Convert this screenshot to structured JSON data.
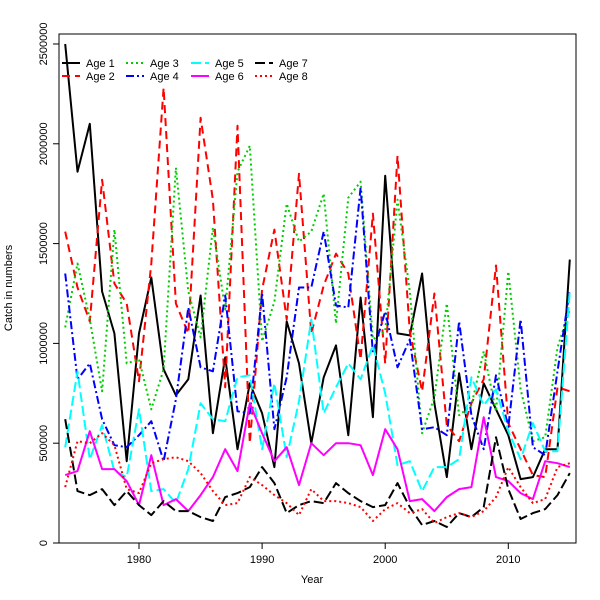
{
  "chart_data": {
    "type": "line",
    "xlabel": "Year",
    "ylabel": "Catch in numbers",
    "xlim": [
      1973.5,
      2015.5
    ],
    "ylim": [
      0,
      2550000
    ],
    "x_ticks": [
      1980,
      1990,
      2000,
      2010
    ],
    "y_ticks": [
      0,
      500000,
      1000000,
      1500000,
      2000000,
      2500000
    ],
    "legend_position": "top-left",
    "x": [
      1974,
      1975,
      1976,
      1977,
      1978,
      1979,
      1980,
      1981,
      1982,
      1983,
      1984,
      1985,
      1986,
      1987,
      1988,
      1989,
      1990,
      1991,
      1992,
      1993,
      1994,
      1995,
      1996,
      1997,
      1998,
      1999,
      2000,
      2001,
      2002,
      2003,
      2004,
      2005,
      2006,
      2007,
      2008,
      2009,
      2010,
      2011,
      2012,
      2013,
      2014,
      2015
    ],
    "series": [
      {
        "name": "Age 1",
        "color": "#000000",
        "dash": "solid",
        "values": [
          2500000,
          1860000,
          2100000,
          1260000,
          1050000,
          410000,
          1050000,
          1330000,
          870000,
          740000,
          820000,
          1240000,
          550000,
          930000,
          470000,
          800000,
          650000,
          380000,
          1110000,
          900000,
          500000,
          830000,
          990000,
          540000,
          1230000,
          630000,
          1840000,
          1050000,
          1040000,
          1350000,
          700000,
          330000,
          850000,
          470000,
          800000,
          670000,
          540000,
          320000,
          330000,
          470000,
          470000,
          1420000
        ]
      },
      {
        "name": "Age 2",
        "color": "#ff0000",
        "dash": "8,5",
        "values": [
          1560000,
          1280000,
          1110000,
          1820000,
          1300000,
          1200000,
          810000,
          1400000,
          2280000,
          1200000,
          1050000,
          2130000,
          1720000,
          780000,
          2090000,
          500000,
          1270000,
          1570000,
          1120000,
          1850000,
          1050000,
          1290000,
          1450000,
          1350000,
          920000,
          1650000,
          900000,
          1940000,
          1060000,
          760000,
          1250000,
          590000,
          510000,
          700000,
          820000,
          1390000,
          600000,
          470000,
          340000,
          330000,
          780000,
          760000
        ]
      },
      {
        "name": "Age 3",
        "color": "#00cd00",
        "dash": "2,3",
        "values": [
          1080000,
          1400000,
          1120000,
          760000,
          1570000,
          900000,
          920000,
          670000,
          870000,
          1880000,
          1260000,
          1030000,
          1580000,
          1170000,
          1860000,
          1990000,
          1010000,
          1210000,
          1700000,
          1510000,
          1560000,
          1750000,
          1100000,
          1730000,
          1810000,
          1020000,
          1060000,
          1720000,
          1260000,
          550000,
          730000,
          1200000,
          640000,
          690000,
          960000,
          660000,
          1360000,
          770000,
          510000,
          530000,
          980000,
          1170000
        ]
      },
      {
        "name": "Age 4",
        "color": "#0000ff",
        "dash": "8,3,2,3",
        "values": [
          1350000,
          820000,
          900000,
          620000,
          490000,
          480000,
          540000,
          610000,
          410000,
          720000,
          1180000,
          880000,
          860000,
          1240000,
          660000,
          650000,
          1250000,
          570000,
          830000,
          1280000,
          1280000,
          1560000,
          1190000,
          1180000,
          1780000,
          950000,
          1160000,
          880000,
          1020000,
          570000,
          580000,
          540000,
          1110000,
          640000,
          470000,
          840000,
          580000,
          1120000,
          480000,
          440000,
          860000,
          1270000
        ]
      },
      {
        "name": "Age 5",
        "color": "#00ffff",
        "dash": "10,4",
        "values": [
          480000,
          860000,
          420000,
          590000,
          360000,
          330000,
          670000,
          260000,
          270000,
          200000,
          370000,
          700000,
          620000,
          610000,
          830000,
          840000,
          470000,
          800000,
          430000,
          710000,
          1120000,
          650000,
          780000,
          900000,
          820000,
          990000,
          750000,
          390000,
          410000,
          260000,
          380000,
          380000,
          420000,
          830000,
          690000,
          770000,
          560000,
          420000,
          600000,
          460000,
          460000,
          1260000
        ]
      },
      {
        "name": "Age 6",
        "color": "#ff00ff",
        "dash": "solid",
        "values": [
          340000,
          360000,
          560000,
          370000,
          370000,
          310000,
          190000,
          440000,
          190000,
          220000,
          160000,
          240000,
          330000,
          470000,
          360000,
          700000,
          550000,
          410000,
          480000,
          290000,
          500000,
          440000,
          500000,
          500000,
          490000,
          340000,
          570000,
          470000,
          210000,
          220000,
          160000,
          230000,
          270000,
          280000,
          630000,
          330000,
          310000,
          250000,
          220000,
          410000,
          400000,
          380000
        ]
      },
      {
        "name": "Age 7",
        "color": "#000000",
        "dash": "10,4",
        "values": [
          620000,
          260000,
          240000,
          270000,
          190000,
          260000,
          190000,
          140000,
          210000,
          160000,
          160000,
          130000,
          110000,
          230000,
          250000,
          280000,
          380000,
          300000,
          150000,
          190000,
          210000,
          200000,
          300000,
          250000,
          210000,
          180000,
          190000,
          300000,
          180000,
          90000,
          110000,
          80000,
          150000,
          130000,
          180000,
          530000,
          270000,
          120000,
          150000,
          170000,
          240000,
          350000
        ]
      },
      {
        "name": "Age 8",
        "color": "#ff0000",
        "dash": "2,3",
        "values": [
          280000,
          510000,
          500000,
          550000,
          490000,
          270000,
          250000,
          400000,
          420000,
          430000,
          410000,
          350000,
          260000,
          190000,
          200000,
          330000,
          290000,
          240000,
          200000,
          140000,
          270000,
          210000,
          210000,
          200000,
          180000,
          110000,
          170000,
          200000,
          150000,
          170000,
          100000,
          130000,
          150000,
          130000,
          160000,
          230000,
          380000,
          280000,
          200000,
          220000,
          380000,
          400000
        ]
      }
    ]
  }
}
